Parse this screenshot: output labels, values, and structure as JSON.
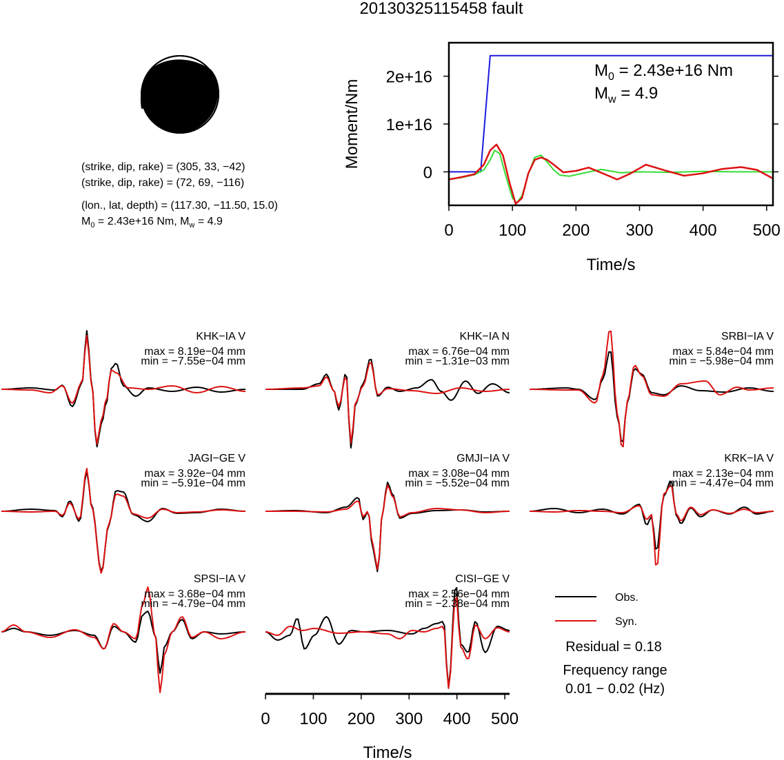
{
  "title": "20130325115458 fault",
  "mechanism": {
    "line1": "(strike, dip, rake) = (305, 33, −42)",
    "line2": "(strike, dip, rake) = (72, 69, −116)",
    "line3": "(lon., lat, depth) = (117.30, −11.50, 15.0)",
    "m0_prefix": "M",
    "m0_sub": "0",
    "m0_value": " = 2.43e+16 Nm, M",
    "mw_sub": "w",
    "mw_value": " = 4.9"
  },
  "colors": {
    "observed": "#000000",
    "synthetic": "#dd1111",
    "moment": "#1a1add",
    "rate": "#33dd33"
  },
  "chart_data": [
    {
      "type": "line",
      "name": "moment-function",
      "xlabel": "Time/s",
      "ylabel": "Moment/Nm",
      "xlim": [
        0,
        510
      ],
      "ylim": [
        -7000000000000000,
        27000000000000000
      ],
      "xticks": [
        0,
        100,
        200,
        300,
        400,
        500
      ],
      "yticks": [
        0,
        10000000000000000,
        20000000000000000
      ],
      "xtick_labels": [
        "0",
        "100",
        "200",
        "300",
        "400",
        "500"
      ],
      "ytick_labels": [
        "0",
        "1e+16",
        "2e+16"
      ],
      "annotation_m0_prefix": "M",
      "annotation_m0_sub": "0",
      "annotation_m0_value": " = 2.43e+16 Nm",
      "annotation_mw_prefix": "M",
      "annotation_mw_sub": "w",
      "annotation_mw_value": " = 4.9",
      "series": [
        {
          "color": "blue",
          "x": [
            0,
            50,
            65,
            510
          ],
          "y": [
            0,
            0,
            24300000000000000,
            24300000000000000
          ]
        },
        {
          "color": "green",
          "x": [
            0,
            20,
            40,
            55,
            65,
            72,
            80,
            90,
            100,
            107,
            115,
            125,
            135,
            145,
            155,
            165,
            175,
            190,
            210,
            240,
            270,
            300,
            350,
            400,
            450,
            510
          ],
          "y": [
            -1500000000000000,
            -1200000000000000,
            -600000000000000,
            400000000000000,
            2500000000000000,
            4500000000000000,
            3800000000000000,
            -1000000000000000,
            -5500000000000000,
            -6500000000000000,
            -5000000000000000,
            -500000000000000,
            3000000000000000,
            3500000000000000,
            2000000000000000,
            400000000000000,
            -700000000000000,
            -900000000000000,
            -300000000000000,
            500000000000000,
            -200000000000000,
            0,
            -100000000000000,
            100000000000000,
            0,
            0
          ]
        },
        {
          "color": "red",
          "x": [
            0,
            20,
            40,
            55,
            65,
            75,
            85,
            95,
            105,
            115,
            125,
            135,
            145,
            155,
            165,
            180,
            200,
            220,
            240,
            265,
            285,
            310,
            340,
            370,
            400,
            430,
            460,
            485,
            510
          ],
          "y": [
            -1600000000000000,
            -1100000000000000,
            -500000000000000,
            1500000000000000,
            4500000000000000,
            5700000000000000,
            3500000000000000,
            -2000000000000000,
            -6700000000000000,
            -5500000000000000,
            -300000000000000,
            2500000000000000,
            3000000000000000,
            2500000000000000,
            1500000000000000,
            -100000000000000,
            200000000000000,
            900000000000000,
            -200000000000000,
            -1600000000000000,
            -400000000000000,
            1500000000000000,
            300000000000000,
            -800000000000000,
            -300000000000000,
            600000000000000,
            1000000000000000,
            400000000000000,
            -1400000000000000
          ]
        }
      ]
    },
    {
      "type": "line",
      "name": "waveform-comparison",
      "xlabel": "Time/s",
      "xlim": [
        0,
        510
      ],
      "xticks": [
        0,
        100,
        200,
        300,
        400,
        500
      ],
      "xtick_labels": [
        "0",
        "100",
        "200",
        "300",
        "400",
        "500"
      ],
      "stations": [
        {
          "name": "KHK−IA V",
          "max": "max = 8.19e−04 mm",
          "min": "min = −7.55e−04 mm"
        },
        {
          "name": "KHK−IA N",
          "max": "max = 6.76e−04 mm",
          "min": "min = −1.31e−03 mm"
        },
        {
          "name": "SRBI−IA V",
          "max": "max = 5.84e−04 mm",
          "min": "min = −5.98e−04 mm"
        },
        {
          "name": "JAGI−GE V",
          "max": "max = 3.92e−04 mm",
          "min": "min = −5.91e−04 mm"
        },
        {
          "name": "GMJI−IA V",
          "max": "max = 3.08e−04 mm",
          "min": "min = −5.52e−04 mm"
        },
        {
          "name": "KRK−IA V",
          "max": "max = 2.13e−04 mm",
          "min": "min = −4.47e−04 mm"
        },
        {
          "name": "SPSI−IA V",
          "max": "max = 3.68e−04 mm",
          "min": "min = −4.79e−04 mm"
        },
        {
          "name": "CISI−GE V",
          "max": "max = 2.56e−04 mm",
          "min": "min = −2.38e−04 mm"
        }
      ]
    }
  ],
  "legend": {
    "obs": "Obs.",
    "syn": "Syn.",
    "residual": "Residual = 0.18",
    "freq_title": "Frequency range",
    "freq_value": "0.01 − 0.02 (Hz)"
  }
}
